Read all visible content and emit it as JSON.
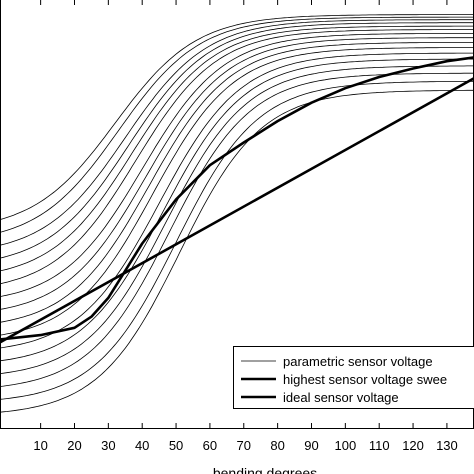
{
  "chart_data": {
    "type": "line",
    "xlabel": "bending degrees",
    "ylabel": "",
    "xlim": [
      -2,
      138
    ],
    "ylim": [
      0,
      1
    ],
    "x_ticks": [
      "10",
      "20",
      "30",
      "40",
      "50",
      "60",
      "70",
      "80",
      "90",
      "100",
      "110",
      "120",
      "130"
    ],
    "grid": false,
    "legend_position": "bottom-right",
    "legend": [
      {
        "label": "parametric sensor voltage",
        "style": "thin"
      },
      {
        "label": "highest sensor voltage swee",
        "style": "thick"
      },
      {
        "label": "ideal sensor voltage",
        "style": "thick"
      }
    ],
    "parametric_curves": {
      "name": "parametric sensor voltage",
      "x": [
        -2,
        0,
        10,
        20,
        30,
        40,
        50,
        60,
        70,
        80,
        90,
        100,
        110,
        120,
        130,
        138
      ],
      "lows": [
        0.487,
        0.457,
        0.427,
        0.397,
        0.367,
        0.337,
        0.307,
        0.277,
        0.247,
        0.217,
        0.187,
        0.157,
        0.127,
        0.097,
        0.067,
        0.037
      ],
      "rise_high": [
        0.966,
        0.96,
        0.954,
        0.947,
        0.939,
        0.931,
        0.922,
        0.912,
        0.901,
        0.889,
        0.876,
        0.862,
        0.846,
        0.829,
        0.81,
        0.789
      ],
      "midpoint_x": [
        32,
        33,
        35,
        36,
        37,
        38,
        40,
        41,
        42,
        43,
        45,
        46,
        47,
        48,
        50,
        51
      ],
      "steepness": 12
    },
    "series": [
      {
        "name": "highest sensor voltage swee",
        "x": [
          -2,
          10,
          20,
          25,
          30,
          40,
          50,
          60,
          70,
          80,
          90,
          100,
          110,
          120,
          130,
          138
        ],
        "values": [
          0.207,
          0.217,
          0.234,
          0.26,
          0.304,
          0.431,
          0.534,
          0.614,
          0.667,
          0.717,
          0.76,
          0.794,
          0.82,
          0.84,
          0.857,
          0.866
        ]
      },
      {
        "name": "ideal sensor voltage",
        "x": [
          -2,
          138
        ],
        "values": [
          0.2,
          0.817
        ]
      }
    ]
  }
}
